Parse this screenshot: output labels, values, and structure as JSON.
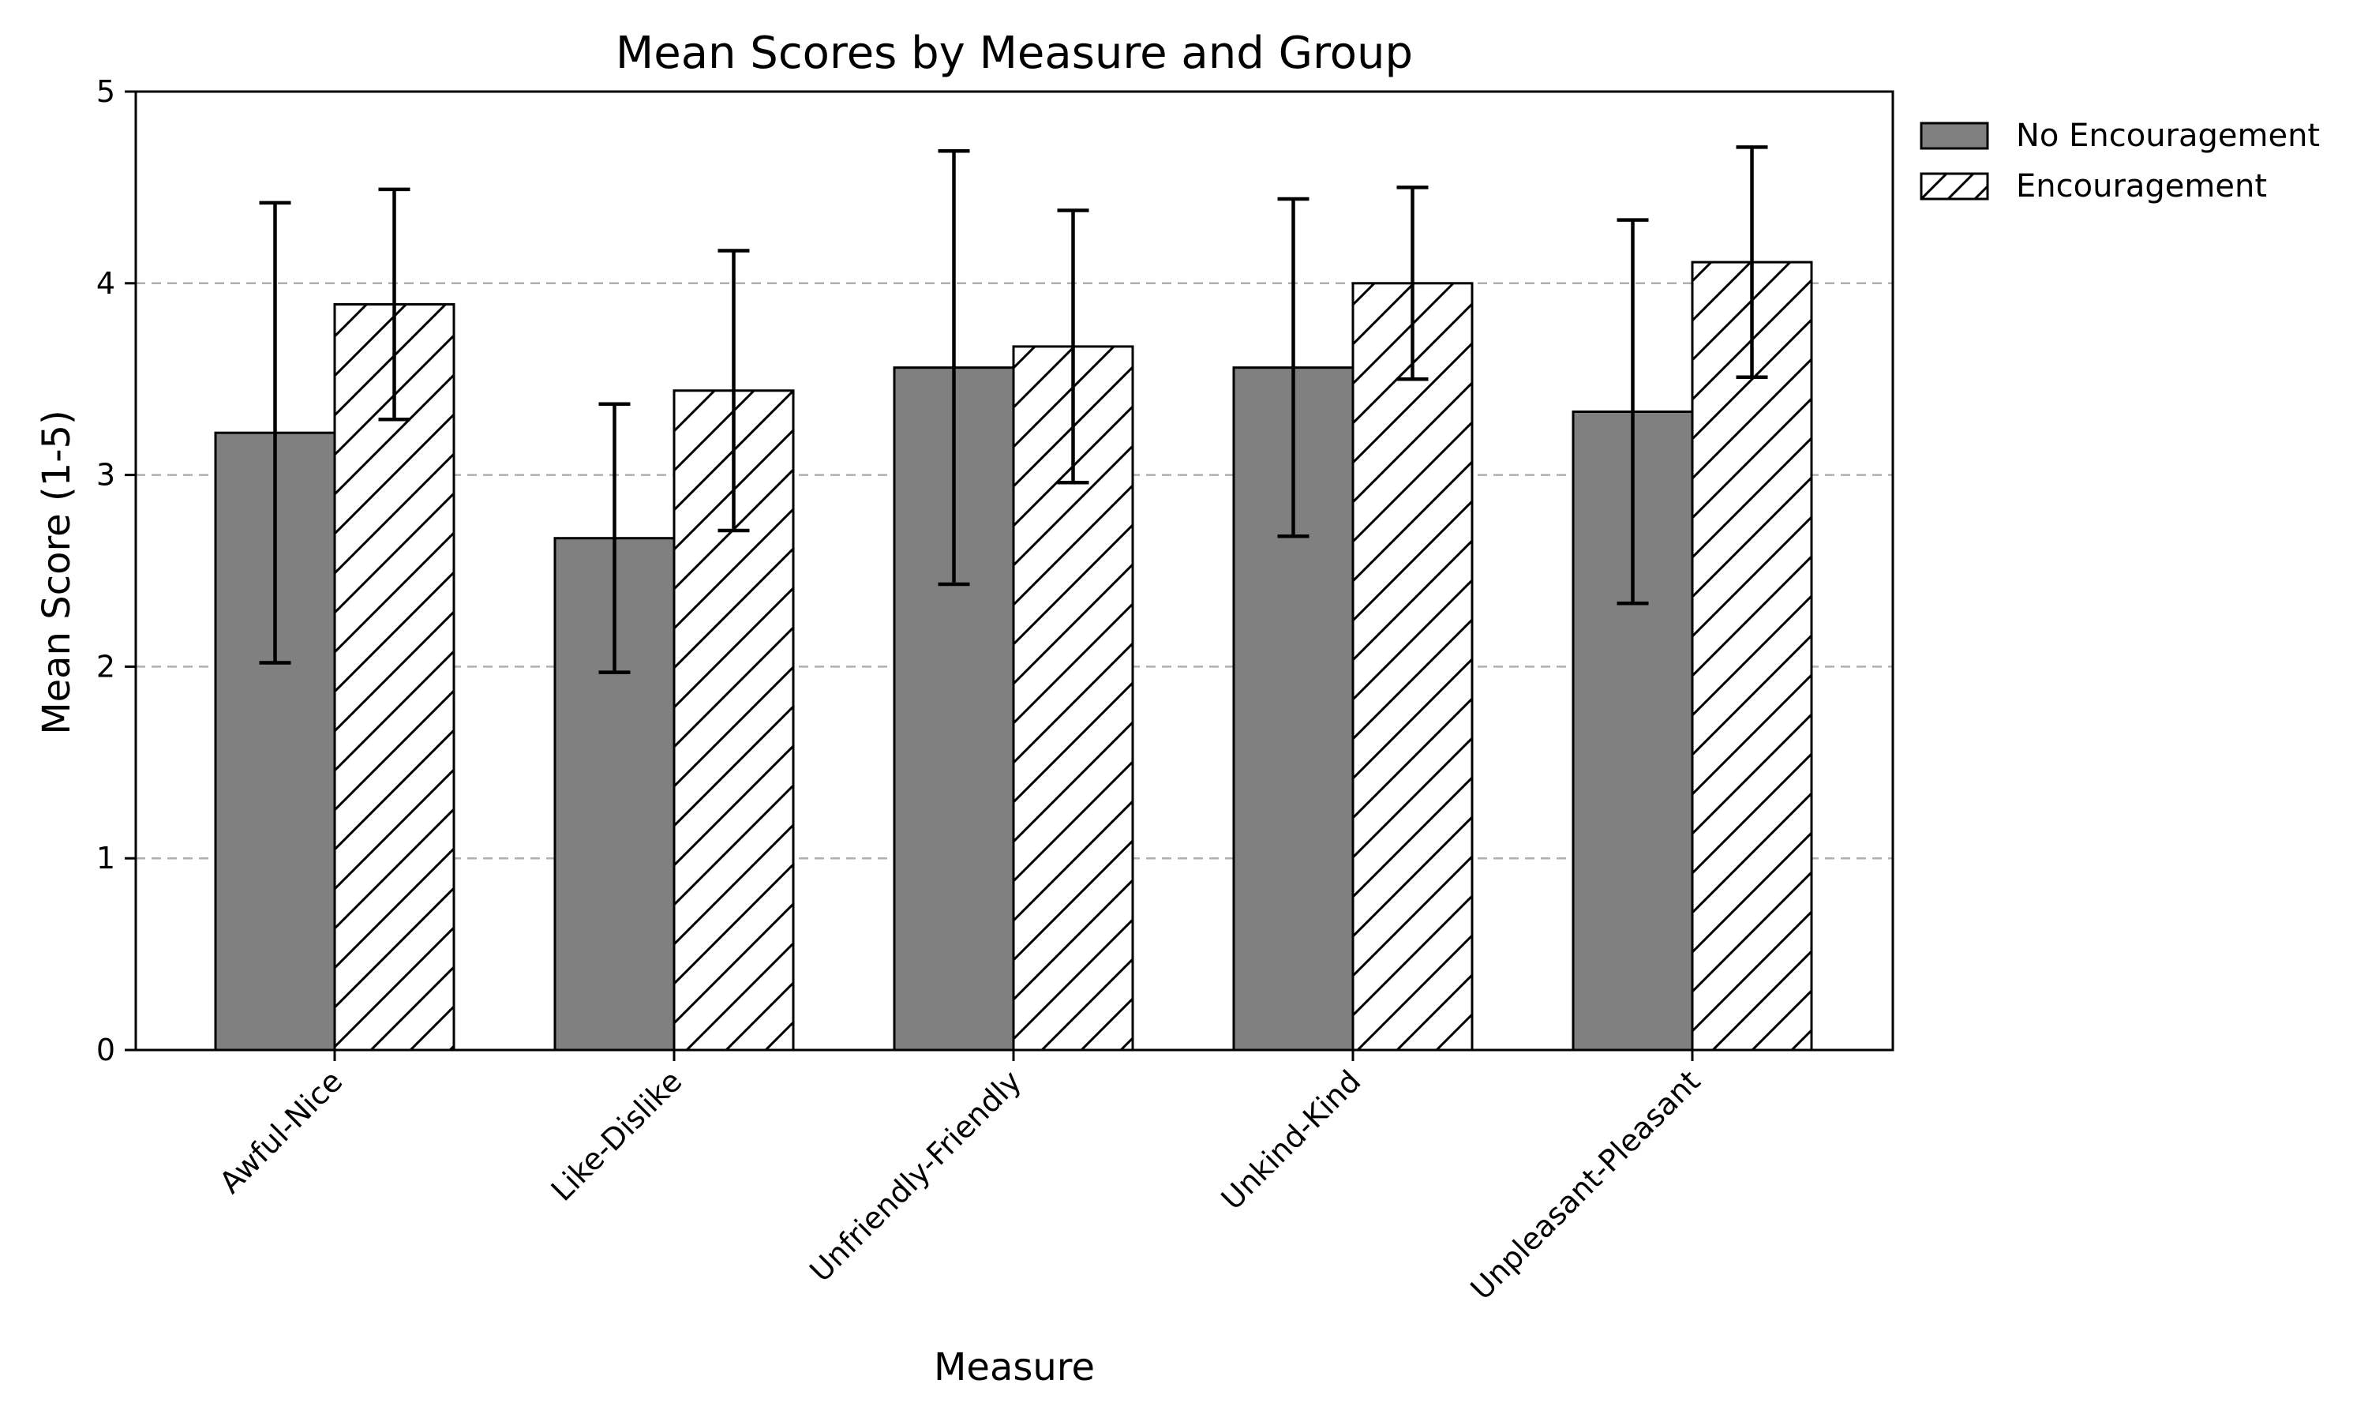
{
  "chart_data": {
    "type": "bar",
    "title": "Mean Scores by Measure and Group",
    "xlabel": "Measure",
    "ylabel": "Mean Score (1-5)",
    "ylim": [
      0,
      5
    ],
    "yticks": [
      0,
      1,
      2,
      3,
      4,
      5
    ],
    "grid": "y-dashed",
    "legend_position": "outside-top-right",
    "categories": [
      "Awful-Nice",
      "Like-Dislike",
      "Unfriendly-Friendly",
      "Unkind-Kind",
      "Unpleasant-Pleasant"
    ],
    "series": [
      {
        "name": "No Encouragement",
        "values": [
          3.22,
          2.67,
          3.56,
          3.56,
          3.33
        ],
        "errors": [
          1.2,
          0.7,
          1.13,
          0.88,
          1.0
        ],
        "fill": "#808080",
        "pattern": "solid"
      },
      {
        "name": "Encouragement",
        "values": [
          3.89,
          3.44,
          3.67,
          4.0,
          4.11
        ],
        "errors": [
          0.6,
          0.73,
          0.71,
          0.5,
          0.6
        ],
        "fill": "#ffffff",
        "pattern": "hatch"
      }
    ]
  }
}
